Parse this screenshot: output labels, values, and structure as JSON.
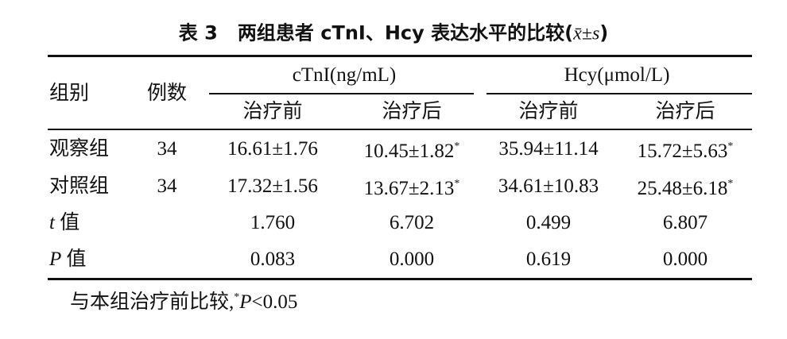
{
  "title": {
    "number": "表 3",
    "text": "两组患者 cTnI、Hcy 表达水平的比较(",
    "stat": "x̄±s",
    "close": ")"
  },
  "table": {
    "header": {
      "group": "组别",
      "count": "例数",
      "cols": [
        "cTnI(ng/mL)",
        "Hcy(μmol/L)"
      ],
      "subcols": [
        "治疗前",
        "治疗后",
        "治疗前",
        "治疗后"
      ]
    },
    "rows": [
      {
        "label": "观察组",
        "count": "34",
        "cells": [
          {
            "text": "16.61±1.76"
          },
          {
            "text": "10.45±1.82",
            "sup": "*"
          },
          {
            "text": "35.94±11.14"
          },
          {
            "text": "15.72±5.63",
            "sup": "*"
          }
        ]
      },
      {
        "label": "对照组",
        "count": "34",
        "cells": [
          {
            "text": "17.32±1.56"
          },
          {
            "text": "13.67±2.13",
            "sup": "*"
          },
          {
            "text": "34.61±10.83"
          },
          {
            "text": "25.48±6.18",
            "sup": "*"
          }
        ]
      },
      {
        "var": "t",
        "label": "值",
        "cells": [
          {
            "text": "1.760"
          },
          {
            "text": "6.702"
          },
          {
            "text": "0.499"
          },
          {
            "text": "6.807"
          }
        ]
      },
      {
        "var": "P",
        "label": "值",
        "cells": [
          {
            "text": "0.083"
          },
          {
            "text": "0.000"
          },
          {
            "text": "0.619"
          },
          {
            "text": "0.000"
          }
        ]
      }
    ]
  },
  "footnote": {
    "text": "与本组治疗前比较,",
    "sup": "*",
    "var": "P",
    "rest": "<0.05"
  }
}
